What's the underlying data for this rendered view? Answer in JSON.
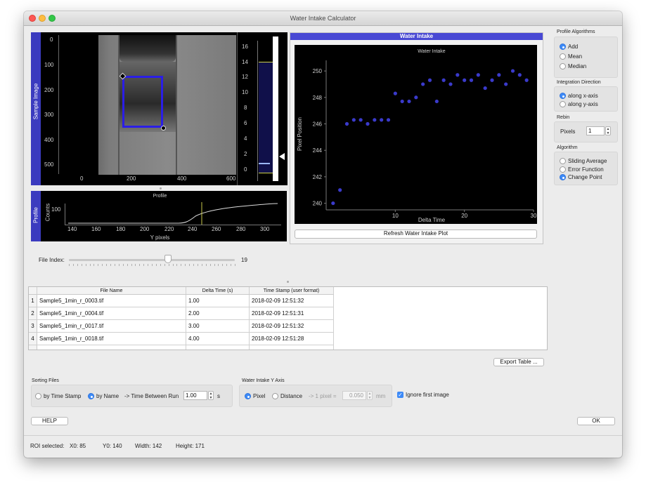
{
  "window": {
    "title": "Water Intake Calculator"
  },
  "image_panel": {
    "side_label": "Sample Image",
    "y_ticks": [
      "0",
      "100",
      "200",
      "300",
      "400",
      "500"
    ],
    "x_ticks": [
      "0",
      "200",
      "400",
      "600"
    ]
  },
  "histogram": {
    "ticks": [
      "16",
      "14",
      "12",
      "10",
      "8",
      "6",
      "4",
      "2",
      "0"
    ]
  },
  "profile": {
    "side_label": "Profile",
    "title": "Profile",
    "ylabel": "Counts",
    "xlabel": "Y pixels",
    "y_ticks": [
      "100",
      "50"
    ],
    "x_ticks": [
      "140",
      "160",
      "180",
      "200",
      "220",
      "240",
      "260",
      "280",
      "300"
    ]
  },
  "water_intake": {
    "header": "Water Intake",
    "refresh_button": "Refresh Water Intake Plot"
  },
  "chart_data": {
    "type": "scatter",
    "title": "Water Intake",
    "xlabel": "Delta Time",
    "ylabel": "Pixel Position",
    "xlim": [
      0,
      30
    ],
    "ylim": [
      239.5,
      250.8
    ],
    "x_ticks": [
      10,
      20,
      30
    ],
    "y_ticks": [
      240,
      242,
      244,
      246,
      248,
      250
    ],
    "marker_color": "#3a3acb",
    "x": [
      1,
      2,
      3,
      4,
      5,
      6,
      7,
      8,
      9,
      10,
      11,
      12,
      13,
      14,
      15,
      16,
      17,
      18,
      19,
      20,
      21,
      22,
      23,
      24,
      25,
      26,
      27,
      28,
      29
    ],
    "y": [
      240.0,
      241.0,
      246.0,
      246.3,
      246.3,
      246.0,
      246.3,
      246.3,
      246.3,
      248.3,
      247.7,
      247.7,
      248.0,
      249.0,
      249.3,
      247.7,
      249.3,
      249.0,
      249.7,
      249.3,
      249.3,
      249.7,
      248.7,
      249.3,
      249.7,
      249.0,
      250.0,
      249.7,
      249.3
    ]
  },
  "file_index": {
    "label": "File Index:",
    "value": "19"
  },
  "table": {
    "columns": [
      "File Name",
      "Delta Time (s)",
      "Time Stamp (user format)"
    ],
    "rows": [
      {
        "n": "1",
        "file": "Sample5_1min_r_0003.tif",
        "dt": "1.00",
        "ts": "2018-02-09 12:51:32"
      },
      {
        "n": "2",
        "file": "Sample5_1min_r_0004.tif",
        "dt": "2.00",
        "ts": "2018-02-09 12:51:31"
      },
      {
        "n": "3",
        "file": "Sample5_1min_r_0017.tif",
        "dt": "3.00",
        "ts": "2018-02-09 12:51:32"
      },
      {
        "n": "4",
        "file": "Sample5_1min_r_0018.tif",
        "dt": "4.00",
        "ts": "2018-02-09 12:51:28"
      }
    ]
  },
  "export_button": "Export Table ...",
  "sorting": {
    "title": "Sorting Files",
    "by_time_stamp": "by Time Stamp",
    "by_name": "by Name",
    "time_between_label": "-> Time Between Run",
    "time_between_value": "1.00",
    "unit": "s"
  },
  "y_axis": {
    "title": "Water Intake Y Axis",
    "pixel": "Pixel",
    "distance": "Distance",
    "conversion_label": "-> 1 pixel =",
    "conversion_value": "0.050",
    "conversion_unit": "mm"
  },
  "ignore_first": "Ignore first image",
  "help_button": "HELP",
  "ok_button": "OK",
  "status": {
    "roi": "ROI selected:",
    "x0": "X0:  85",
    "y0": "Y0:  140",
    "width": "Width:  142",
    "height": "Height:  171"
  },
  "right_panel": {
    "profile_algorithms": "Profile Algorithms",
    "add": "Add",
    "mean": "Mean",
    "median": "Median",
    "integration_direction": "Integration Direction",
    "along_x": "along x-axis",
    "along_y": "along y-axis",
    "rebin": "Rebin",
    "pixels_label": "Pixels",
    "pixels_value": "1",
    "algorithm": "Algorithm",
    "sliding_average": "Sliding Average",
    "error_function": "Error Function",
    "change_point": "Change Point"
  }
}
